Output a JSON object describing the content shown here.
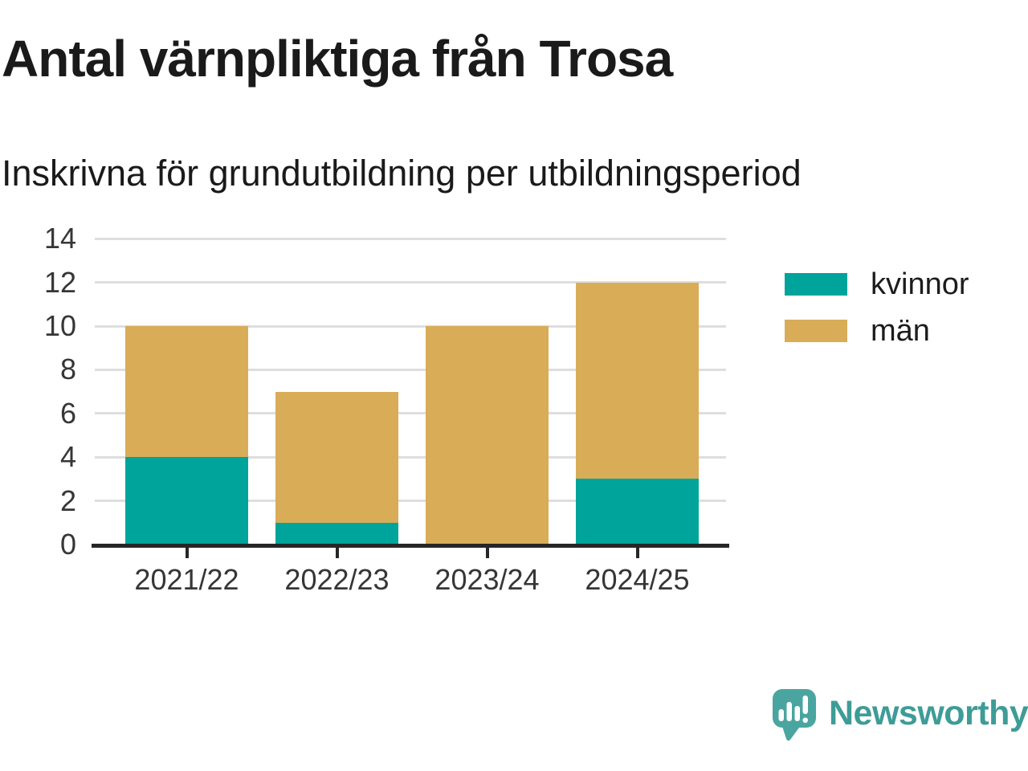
{
  "header": {
    "title": "Antal värnpliktiga från Trosa",
    "subtitle": "Inskrivna för grundutbildning per utbildningsperiod"
  },
  "chart_data": {
    "type": "bar",
    "stacked": true,
    "title": "Antal värnpliktiga från Trosa",
    "subtitle": "Inskrivna för grundutbildning per utbildningsperiod",
    "categories": [
      "2021/22",
      "2022/23",
      "2023/24",
      "2024/25"
    ],
    "series": [
      {
        "name": "kvinnor",
        "color": "#00a49a",
        "values": [
          4,
          1,
          0,
          3
        ]
      },
      {
        "name": "män",
        "color": "#d9ac58",
        "values": [
          6,
          6,
          10,
          9
        ]
      }
    ],
    "totals": [
      10,
      7,
      10,
      12
    ],
    "xlabel": "",
    "ylabel": "",
    "ylim": [
      0,
      14
    ],
    "ytick_step": 2,
    "yticks": [
      0,
      2,
      4,
      6,
      8,
      10,
      12,
      14
    ],
    "grid": true,
    "legend_position": "right"
  },
  "legend": {
    "items": [
      {
        "label": "kvinnor",
        "color": "#00a49a"
      },
      {
        "label": "män",
        "color": "#d9ac58"
      }
    ]
  },
  "footer": {
    "brand": "Newsworthy",
    "brand_color": "#3e9c97",
    "logo_bubble_color": "#4aa5a0"
  }
}
